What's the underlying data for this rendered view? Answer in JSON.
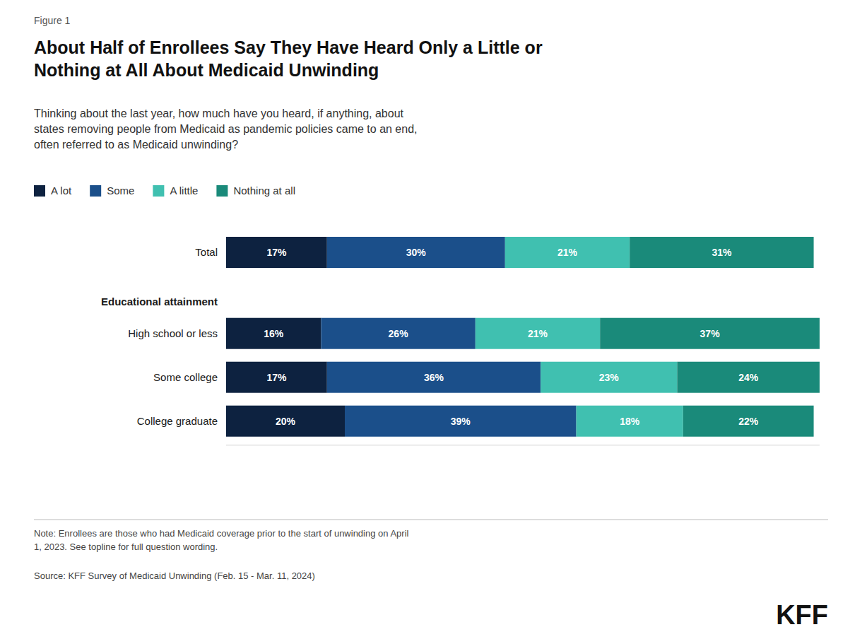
{
  "chart_data": {
    "type": "bar",
    "orientation": "horizontal",
    "stacked": true,
    "data_labels": true,
    "grid": false,
    "legend": "top",
    "tick_labels": "y",
    "figure_label": "Figure 1",
    "title": "About Half of Enrollees Say They Have Heard Only a Little or\nNothing at All About Medicaid Unwinding",
    "subtitle": "Thinking about the last year, how much have you heard, if anything, about\nstates removing people from Medicaid as pandemic policies came to an end,\noften referred to as Medicaid unwinding?",
    "section_label": "Educational attainment",
    "categories": [
      "Total",
      "High school or less",
      "Some college",
      "College graduate"
    ],
    "xlim": [
      0,
      100
    ],
    "series": [
      {
        "name": "A lot",
        "color": "#0d2240",
        "values": [
          17,
          16,
          17,
          20
        ],
        "value_labels": [
          "17%",
          "16%",
          "17%",
          "20%"
        ]
      },
      {
        "name": "Some",
        "color": "#1b4f8a",
        "values": [
          30,
          26,
          36,
          39
        ],
        "value_labels": [
          "30%",
          "26%",
          "36%",
          "39%"
        ]
      },
      {
        "name": "A little",
        "color": "#40c0b0",
        "values": [
          21,
          21,
          23,
          18
        ],
        "value_labels": [
          "21%",
          "21%",
          "23%",
          "18%"
        ]
      },
      {
        "name": "Nothing at all",
        "color": "#1a8a7a",
        "values": [
          31,
          37,
          24,
          22
        ],
        "value_labels": [
          "31%",
          "37%",
          "24%",
          "22%"
        ]
      }
    ],
    "note": "Note: Enrollees are those who had Medicaid coverage prior to the start of unwinding on April\n1, 2023. See topline for full question wording.",
    "source": "Source: KFF Survey of Medicaid Unwinding (Feb. 15 - Mar. 11, 2024)",
    "logo": "KFF"
  }
}
